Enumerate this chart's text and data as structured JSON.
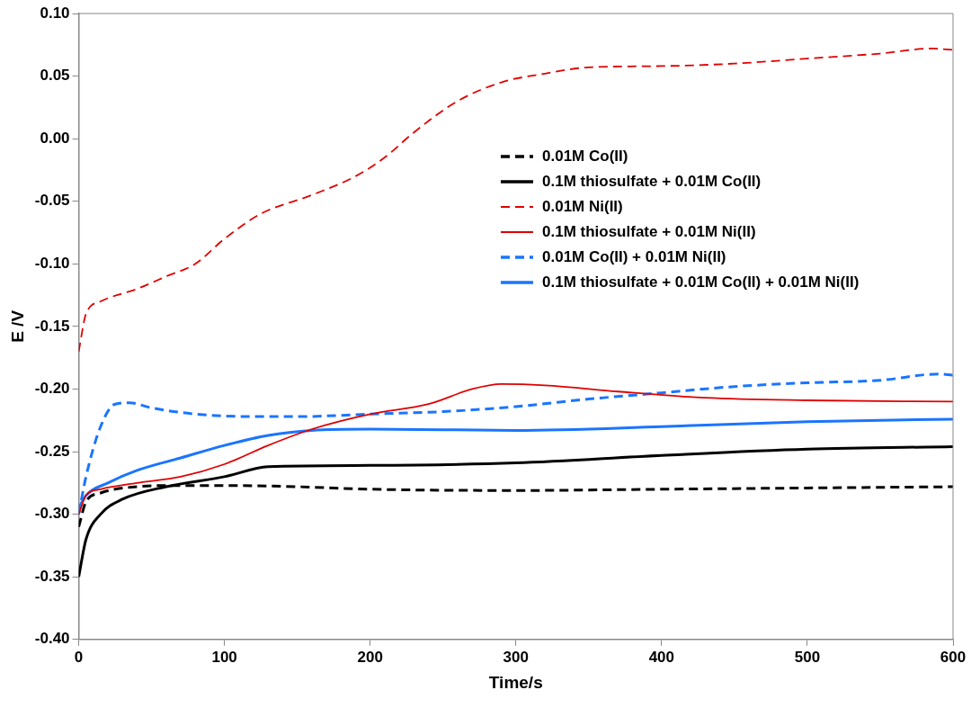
{
  "chart_data": {
    "type": "line",
    "xlabel": "Time/s",
    "ylabel": "E /V",
    "xlim": [
      0,
      600
    ],
    "xticks": [
      0,
      100,
      200,
      300,
      400,
      500,
      600
    ],
    "ylim": [
      -0.4,
      0.1
    ],
    "yticks": [
      {
        "value": -0.4,
        "label": "-0.40"
      },
      {
        "value": -0.35,
        "label": "-0.35"
      },
      {
        "value": -0.3,
        "label": "-0.30"
      },
      {
        "value": -0.25,
        "label": "-0.25"
      },
      {
        "value": -0.2,
        "label": "-0.20"
      },
      {
        "value": -0.15,
        "label": "-0.15"
      },
      {
        "value": -0.1,
        "label": "-0.10"
      },
      {
        "value": -0.05,
        "label": "-0.05"
      },
      {
        "value": 0,
        "label": "0.00"
      },
      {
        "value": 0.05,
        "label": "0.05"
      },
      {
        "value": 0.1,
        "label": "0.10"
      }
    ],
    "grid": false,
    "legend": "right",
    "marker": "none",
    "series": [
      {
        "name": "0.01M Co(II)",
        "color": "#000000",
        "line_style": "dashed",
        "x": [
          0,
          5,
          15,
          25,
          40,
          60,
          100,
          150,
          200,
          300,
          400,
          500,
          600
        ],
        "values": [
          -0.31,
          -0.29,
          -0.283,
          -0.28,
          -0.278,
          -0.277,
          -0.277,
          -0.278,
          -0.28,
          -0.281,
          -0.28,
          -0.279,
          -0.278
        ]
      },
      {
        "name": "0.1M thiosulfate + 0.01M Co(II)",
        "color": "#000000",
        "line_style": "solid",
        "x": [
          0,
          5,
          15,
          30,
          60,
          100,
          130,
          200,
          300,
          400,
          500,
          600
        ],
        "values": [
          -0.35,
          -0.32,
          -0.3,
          -0.288,
          -0.278,
          -0.27,
          -0.262,
          -0.261,
          -0.259,
          -0.253,
          -0.248,
          -0.246
        ]
      },
      {
        "name": "0.01M Ni(II)",
        "color": "#e00000",
        "line_style": "dashed",
        "x": [
          0,
          5,
          15,
          40,
          60,
          80,
          100,
          125,
          160,
          190,
          210,
          230,
          260,
          290,
          320,
          350,
          400,
          450,
          500,
          550,
          585,
          600
        ],
        "values": [
          -0.17,
          -0.14,
          -0.13,
          -0.12,
          -0.11,
          -0.1,
          -0.08,
          -0.06,
          -0.045,
          -0.03,
          -0.015,
          0.005,
          0.03,
          0.045,
          0.052,
          0.057,
          0.058,
          0.06,
          0.064,
          0.068,
          0.072,
          0.071
        ]
      },
      {
        "name": "0.1M thiosulfate + 0.01M Ni(II)",
        "color": "#e00000",
        "line_style": "solid",
        "x": [
          0,
          5,
          15,
          40,
          70,
          100,
          130,
          160,
          200,
          240,
          270,
          290,
          320,
          370,
          430,
          500,
          600
        ],
        "values": [
          -0.3,
          -0.285,
          -0.28,
          -0.275,
          -0.27,
          -0.26,
          -0.245,
          -0.232,
          -0.22,
          -0.212,
          -0.2,
          -0.196,
          -0.197,
          -0.202,
          -0.207,
          -0.209,
          -0.21
        ]
      },
      {
        "name": "0.01M Co(II) + 0.01M Ni(II)",
        "color": "#1a75ff",
        "line_style": "dashed",
        "x": [
          0,
          5,
          15,
          25,
          35,
          50,
          80,
          120,
          150,
          200,
          250,
          300,
          350,
          400,
          450,
          500,
          550,
          590,
          600
        ],
        "values": [
          -0.3,
          -0.27,
          -0.23,
          -0.212,
          -0.211,
          -0.215,
          -0.22,
          -0.222,
          -0.222,
          -0.22,
          -0.218,
          -0.214,
          -0.208,
          -0.203,
          -0.198,
          -0.195,
          -0.193,
          -0.188,
          -0.189
        ]
      },
      {
        "name": "0.1M thiosulfate + 0.01M Co(II) + 0.01M Ni(II)",
        "color": "#1a75ff",
        "line_style": "solid",
        "x": [
          0,
          5,
          20,
          40,
          70,
          100,
          130,
          160,
          200,
          300,
          400,
          500,
          600
        ],
        "values": [
          -0.295,
          -0.285,
          -0.275,
          -0.265,
          -0.255,
          -0.245,
          -0.237,
          -0.233,
          -0.232,
          -0.233,
          -0.23,
          -0.226,
          -0.224
        ]
      }
    ]
  }
}
